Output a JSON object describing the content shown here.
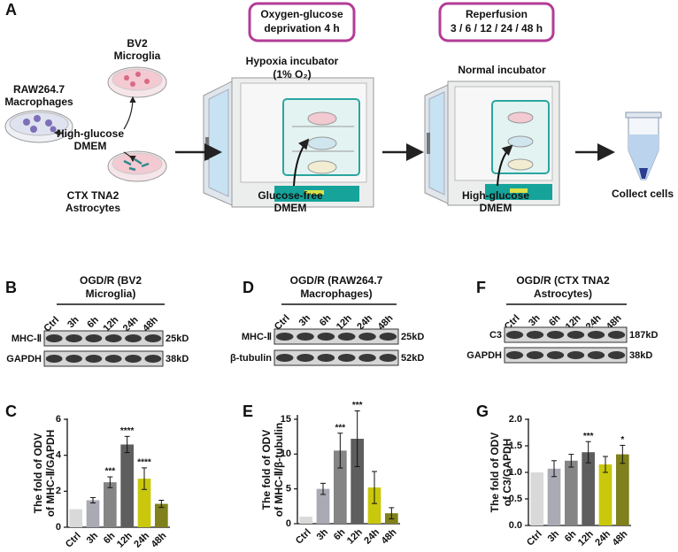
{
  "panel_labels": [
    "A",
    "B",
    "C",
    "D",
    "E",
    "F",
    "G"
  ],
  "diagram": {
    "steps": [
      [
        "Oxygen-glucose",
        "deprivation 4 h"
      ],
      [
        "Reperfusion",
        "3 / 6 / 12 / 24 / 48 h"
      ]
    ],
    "cells": [
      [
        "RAW264.7",
        "Macrophages"
      ],
      [
        "BV2",
        "Microglia"
      ],
      [
        "CTX TNA2",
        "Astrocytes"
      ]
    ],
    "medium": [
      "High-glucose",
      "DMEM"
    ],
    "incubators": [
      [
        "Hypoxia incubator",
        "(1% O₂)"
      ],
      [
        "Normal incubator"
      ]
    ],
    "media": [
      [
        "Glucose-free",
        "DMEM"
      ],
      [
        "High-glucose",
        "DMEM"
      ]
    ],
    "end": "Collect cells"
  },
  "blots": [
    {
      "title": [
        "OGD/R (BV2",
        "Microglia)"
      ],
      "lanes": [
        "Ctrl",
        "3h",
        "6h",
        "12h",
        "24h",
        "48h"
      ],
      "rows": [
        {
          "name": "MHC-Ⅱ",
          "size": "25kD"
        },
        {
          "name": "GAPDH",
          "size": "38kD"
        }
      ]
    },
    {
      "title": [
        "OGD/R (RAW264.7",
        "Macrophages)"
      ],
      "lanes": [
        "Ctrl",
        "3h",
        "6h",
        "12h",
        "24h",
        "48h"
      ],
      "rows": [
        {
          "name": "MHC-Ⅱ",
          "size": "25kD"
        },
        {
          "name": "β-tubulin",
          "size": "52kD"
        }
      ]
    },
    {
      "title": [
        "OGD/R (CTX TNA2",
        "Astrocytes)"
      ],
      "lanes": [
        "Ctrl",
        "3h",
        "6h",
        "12h",
        "24h",
        "48h"
      ],
      "rows": [
        {
          "name": "C3",
          "size": "187kD"
        },
        {
          "name": "GAPDH",
          "size": "38kD"
        }
      ]
    }
  ],
  "chart_data": [
    {
      "type": "bar",
      "ylabel": [
        "The fold of ODV",
        "of MHC-Ⅱ/GAPDH"
      ],
      "categories": [
        "Ctrl",
        "3h",
        "6h",
        "12h",
        "24h",
        "48h"
      ],
      "values": [
        1,
        1.5,
        2.5,
        4.6,
        2.7,
        1.3
      ],
      "errors": [
        0,
        0.15,
        0.3,
        0.45,
        0.6,
        0.2
      ],
      "significance": [
        null,
        null,
        "***",
        "****",
        "****",
        null
      ],
      "colors": [
        "#d9d9d9",
        "#a9aab4",
        "#858585",
        "#5e5e5e",
        "#c9c80c",
        "#80801c"
      ],
      "ylim": [
        0,
        6
      ],
      "yticks": [
        0,
        2,
        4,
        6
      ]
    },
    {
      "type": "bar",
      "ylabel": [
        "The fold of ODV",
        "of MHC-Ⅱ/β-tubulin"
      ],
      "categories": [
        "Ctrl",
        "3h",
        "6h",
        "12h",
        "24h",
        "48h"
      ],
      "values": [
        1,
        5,
        10.5,
        12.2,
        5.2,
        1.5
      ],
      "errors": [
        0,
        0.8,
        2.5,
        4,
        2.3,
        0.8
      ],
      "significance": [
        null,
        null,
        "***",
        "***",
        null,
        null
      ],
      "colors": [
        "#d9d9d9",
        "#a9aab4",
        "#858585",
        "#5e5e5e",
        "#c9c80c",
        "#80801c"
      ],
      "ylim": [
        0,
        15.5
      ],
      "yticks": [
        0,
        5,
        10,
        15
      ]
    },
    {
      "type": "bar",
      "ylabel": [
        "The fold of ODV",
        "of C3/GAPDH"
      ],
      "categories": [
        "Ctrl",
        "3h",
        "6h",
        "12h",
        "24h",
        "48h"
      ],
      "values": [
        1.0,
        1.07,
        1.22,
        1.38,
        1.15,
        1.34
      ],
      "errors": [
        0,
        0.15,
        0.12,
        0.2,
        0.15,
        0.17
      ],
      "significance": [
        null,
        null,
        null,
        "***",
        null,
        "*"
      ],
      "colors": [
        "#d9d9d9",
        "#a9aab4",
        "#858585",
        "#5e5e5e",
        "#c9c80c",
        "#80801c"
      ],
      "ylim": [
        0,
        2
      ],
      "yticks": [
        {
          "value": 0,
          "label": "0.0"
        },
        0.5,
        {
          "value": 1,
          "label": "1.0"
        },
        1.5,
        {
          "value": 2,
          "label": "2.0"
        }
      ]
    }
  ]
}
